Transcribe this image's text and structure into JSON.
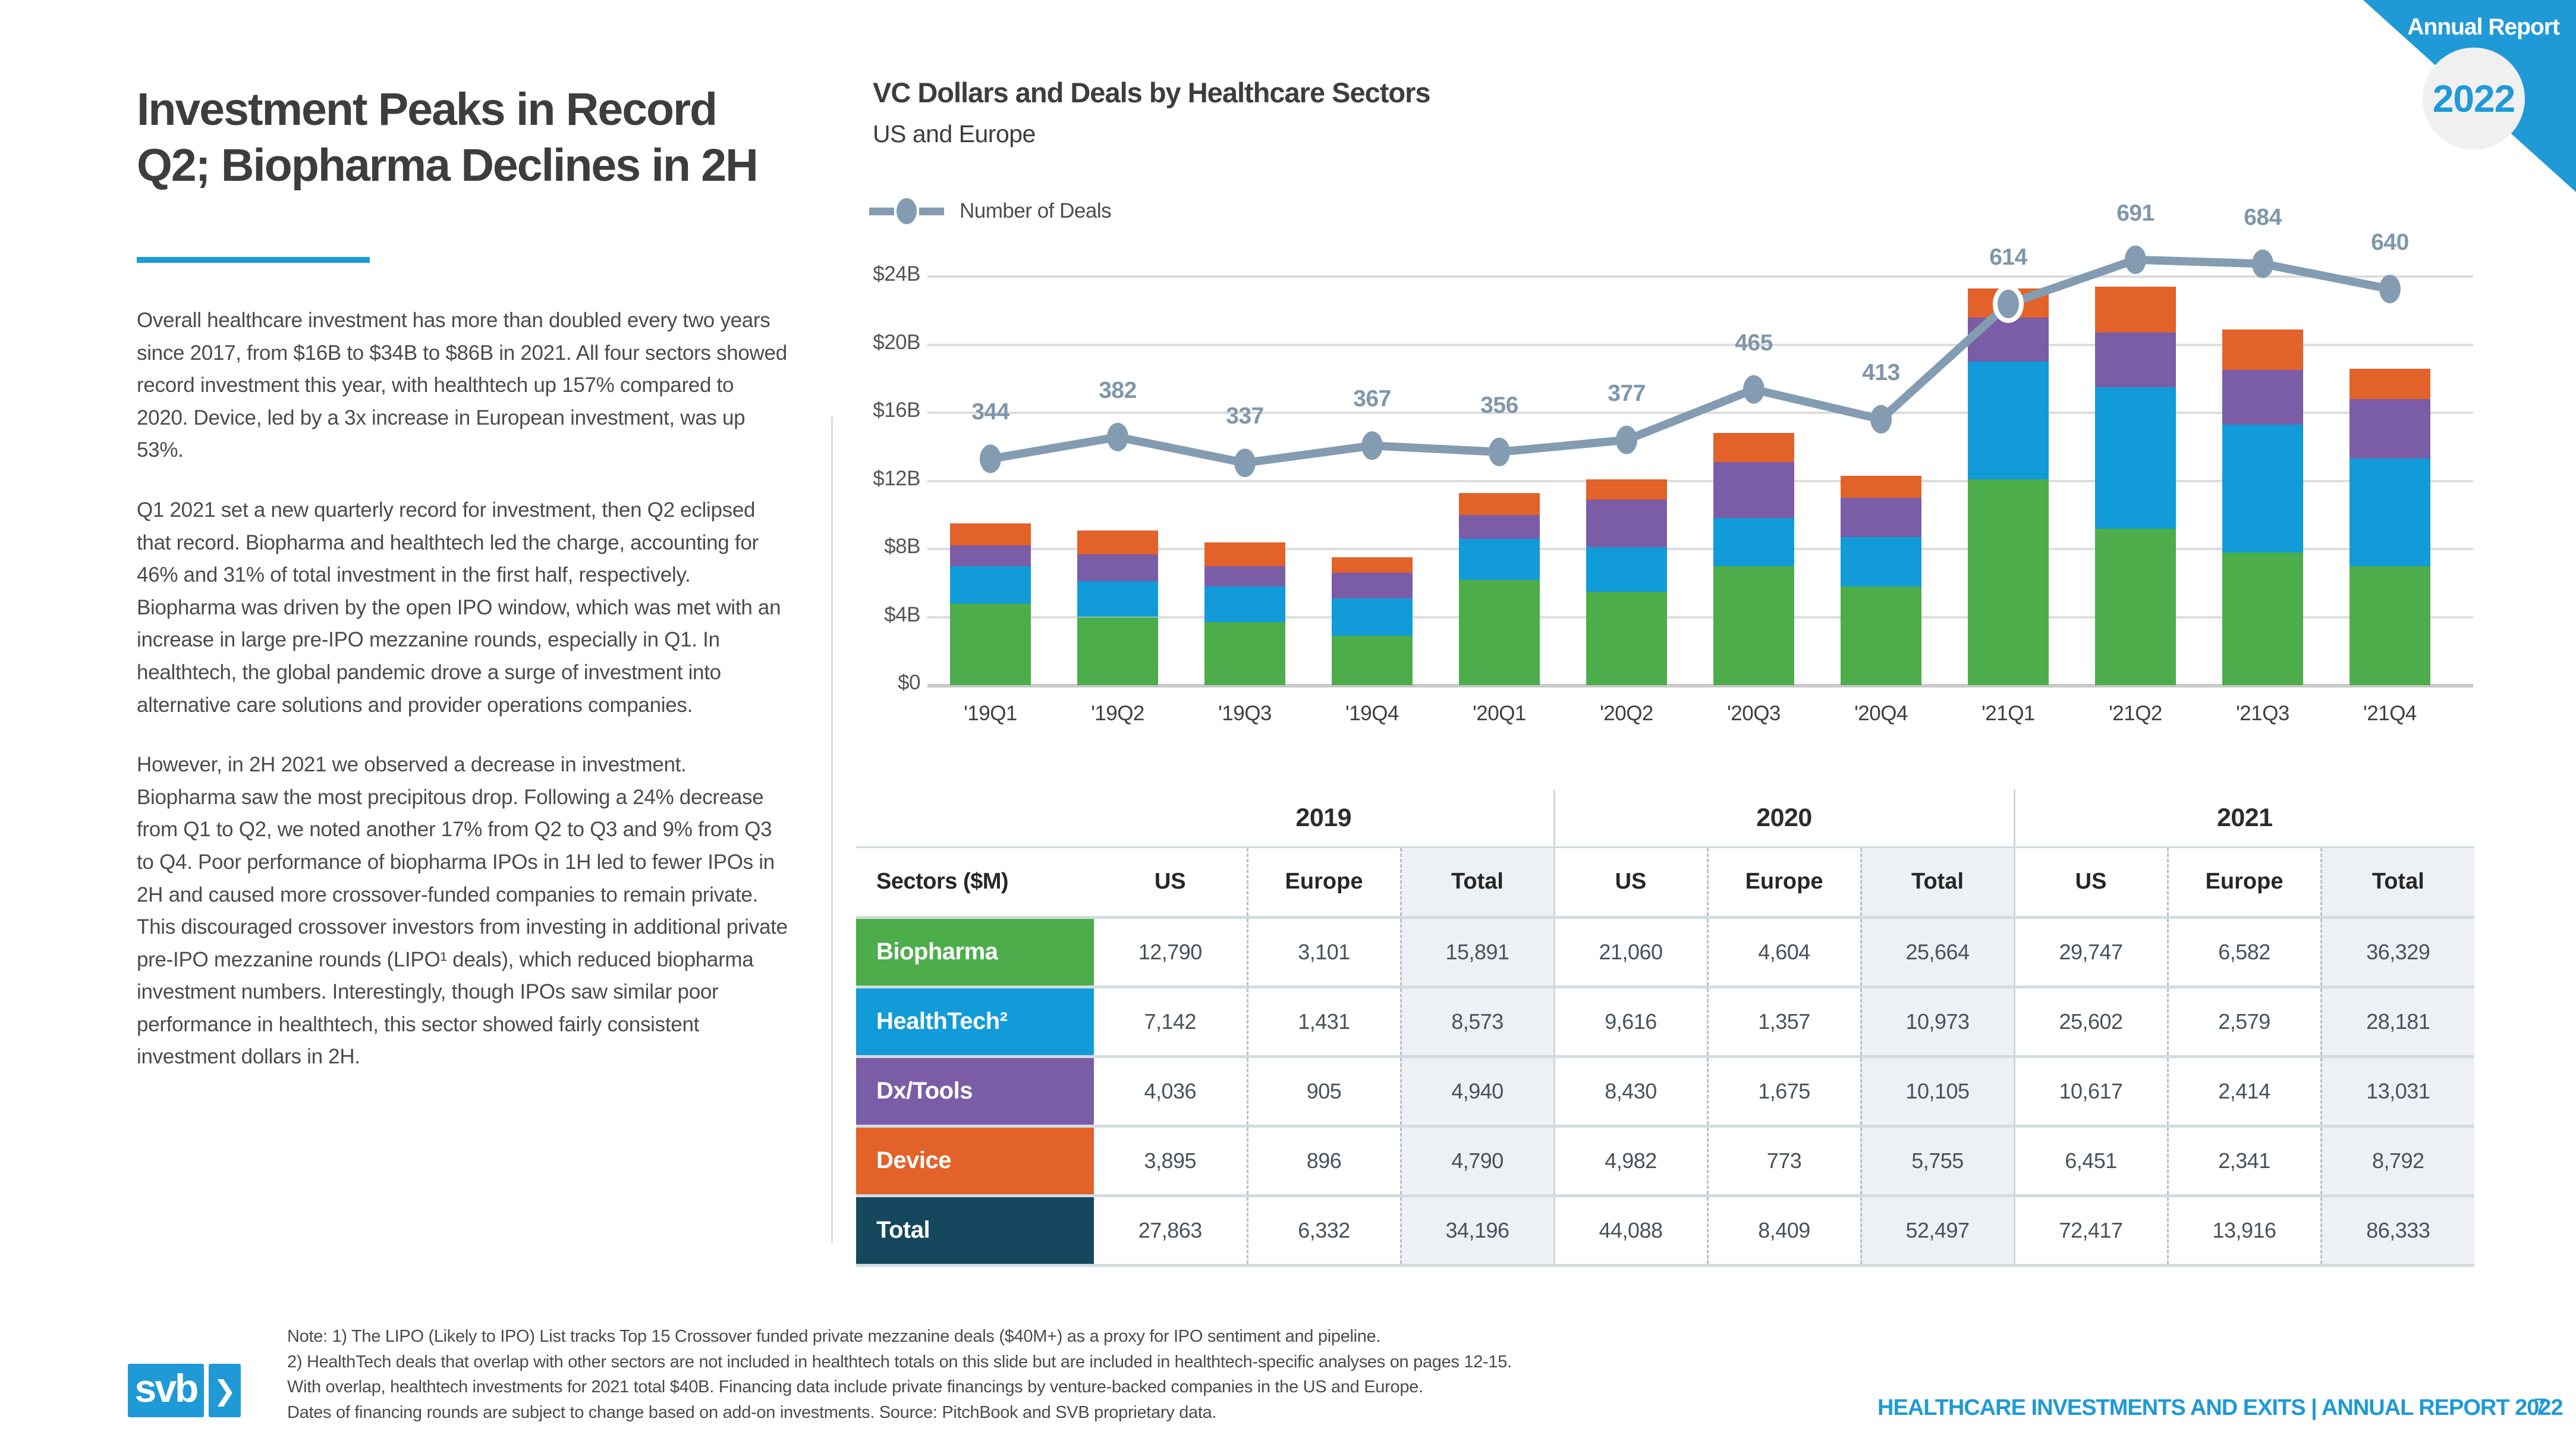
{
  "colors": {
    "accent": "#1f9ad6",
    "biopharma": "#4cad4a",
    "healthtech": "#119bd8",
    "dxtools": "#7b5ca6",
    "device": "#e2622a",
    "navy": "#15485f",
    "deals_line": "#849cb1",
    "deal_label": "#7e97ab",
    "gridline": "#dddddd"
  },
  "badge": {
    "ribbon_label": "Annual Report",
    "year": "2022"
  },
  "left": {
    "title_line1": "Investment Peaks in Record",
    "title_line2": "Q2; Biopharma Declines in 2H",
    "paragraphs": [
      "Overall healthcare investment has more than doubled every two years since 2017, from $16B to $34B to $86B in 2021. All four sectors showed record investment this year, with healthtech up 157% compared to 2020. Device, led by a 3x increase in European investment, was up 53%.",
      "Q1 2021 set a new quarterly record for investment, then Q2 eclipsed that record. Biopharma and healthtech led the charge, accounting for 46% and 31% of total investment in the first half, respectively. Biopharma was driven by the open IPO window, which was met with an increase in large pre-IPO mezzanine rounds, especially in Q1. In healthtech, the global pandemic drove a surge of investment into alternative care solutions and provider operations companies.",
      "However, in 2H 2021 we observed a decrease in investment. Biopharma saw the most precipitous drop. Following a 24% decrease from Q1 to Q2, we noted another 17% from Q2 to Q3 and 9% from Q3 to Q4. Poor performance of biopharma IPOs in 1H led to fewer IPOs in 2H and caused more crossover-funded companies to remain private. This discouraged crossover investors from investing in additional private pre-IPO mezzanine rounds (LIPO¹ deals), which reduced biopharma investment numbers. Interestingly, though IPOs saw similar poor performance in healthtech, this sector showed fairly consistent investment dollars in 2H."
    ]
  },
  "chart": {
    "title": "VC Dollars and Deals by Healthcare Sectors",
    "subtitle": "US and Europe",
    "legend_label": "Number of Deals"
  },
  "chart_data": {
    "type": "bar",
    "subtype": "stacked-bars-with-deals-line",
    "title": "VC Dollars and Deals by Healthcare Sectors",
    "subtitle": "US and Europe",
    "unit": "$B (approx., read from chart)",
    "categories": [
      "'19Q1",
      "'19Q2",
      "'19Q3",
      "'19Q4",
      "'20Q1",
      "'20Q2",
      "'20Q3",
      "'20Q4",
      "'21Q1",
      "'21Q2",
      "'21Q3",
      "'21Q4"
    ],
    "series": [
      {
        "name": "Biopharma",
        "color": "#4cad4a",
        "values": [
          4.8,
          4.0,
          3.7,
          2.9,
          6.2,
          5.5,
          7.0,
          5.8,
          12.1,
          9.2,
          7.8,
          7.0
        ]
      },
      {
        "name": "HealthTech",
        "color": "#119bd8",
        "values": [
          2.2,
          2.1,
          2.1,
          2.2,
          2.4,
          2.6,
          2.8,
          2.9,
          6.9,
          8.3,
          7.5,
          6.3
        ]
      },
      {
        "name": "Dx/Tools",
        "color": "#7b5ca6",
        "values": [
          1.2,
          1.6,
          1.2,
          1.5,
          1.4,
          2.8,
          3.3,
          2.3,
          2.6,
          3.2,
          3.2,
          3.5
        ]
      },
      {
        "name": "Device",
        "color": "#e2622a",
        "values": [
          1.3,
          1.4,
          1.4,
          0.9,
          1.3,
          1.2,
          1.7,
          1.3,
          1.7,
          2.7,
          2.4,
          1.8
        ]
      }
    ],
    "line_series": {
      "name": "Number of Deals",
      "color": "#849cb1",
      "values": [
        344,
        382,
        337,
        367,
        356,
        377,
        465,
        413,
        614,
        691,
        684,
        640
      ],
      "highlight_index": 8
    },
    "deals_axis": {
      "slope": 0.0337,
      "intercept": 1.7
    },
    "ylabel": "",
    "xlabel": "",
    "ylim": [
      0,
      24
    ],
    "ystep": 4,
    "ytick_labels": [
      "$0",
      "$4B",
      "$8B",
      "$12B",
      "$16B",
      "$20B",
      "$24B"
    ],
    "grid": true,
    "legend_position": "top-left"
  },
  "table": {
    "years": [
      "2019",
      "2020",
      "2021"
    ],
    "sector_header": "Sectors ($M)",
    "sub_headers": [
      "US",
      "Europe",
      "Total"
    ],
    "rows": [
      {
        "label": "Biopharma",
        "color": "#4cad4a",
        "values": [
          "12,790",
          "3,101",
          "15,891",
          "21,060",
          "4,604",
          "25,664",
          "29,747",
          "6,582",
          "36,329"
        ]
      },
      {
        "label": "HealthTech²",
        "color": "#119bd8",
        "values": [
          "7,142",
          "1,431",
          "8,573",
          "9,616",
          "1,357",
          "10,973",
          "25,602",
          "2,579",
          "28,181"
        ]
      },
      {
        "label": "Dx/Tools",
        "color": "#7b5ca6",
        "values": [
          "4,036",
          "905",
          "4,940",
          "8,430",
          "1,675",
          "10,105",
          "10,617",
          "2,414",
          "13,031"
        ]
      },
      {
        "label": "Device",
        "color": "#e2622a",
        "values": [
          "3,895",
          "896",
          "4,790",
          "4,982",
          "773",
          "5,755",
          "6,451",
          "2,341",
          "8,792"
        ]
      },
      {
        "label": "Total",
        "color": "#15485f",
        "values": [
          "27,863",
          "6,332",
          "34,196",
          "44,088",
          "8,409",
          "52,497",
          "72,417",
          "13,916",
          "86,333"
        ]
      }
    ]
  },
  "notes": [
    "Note: 1) The LIPO (Likely to IPO) List tracks Top 15 Crossover funded private mezzanine deals ($40M+) as a proxy for IPO sentiment and pipeline.",
    "2) HealthTech deals that overlap with other sectors are not included in healthtech totals on this slide but are included in healthtech-specific analyses on pages 12-15.",
    "With overlap, healthtech investments for 2021 total $40B. Financing data include private financings by venture-backed companies in the US and Europe.",
    "Dates of financing rounds are subject to change based on add-on investments. Source: PitchBook and SVB proprietary data."
  ],
  "footer": {
    "logo_text": "svb",
    "chevron": "❯",
    "title": "HEALTHCARE INVESTMENTS AND EXITS | ANNUAL REPORT 2022",
    "page": "7"
  }
}
